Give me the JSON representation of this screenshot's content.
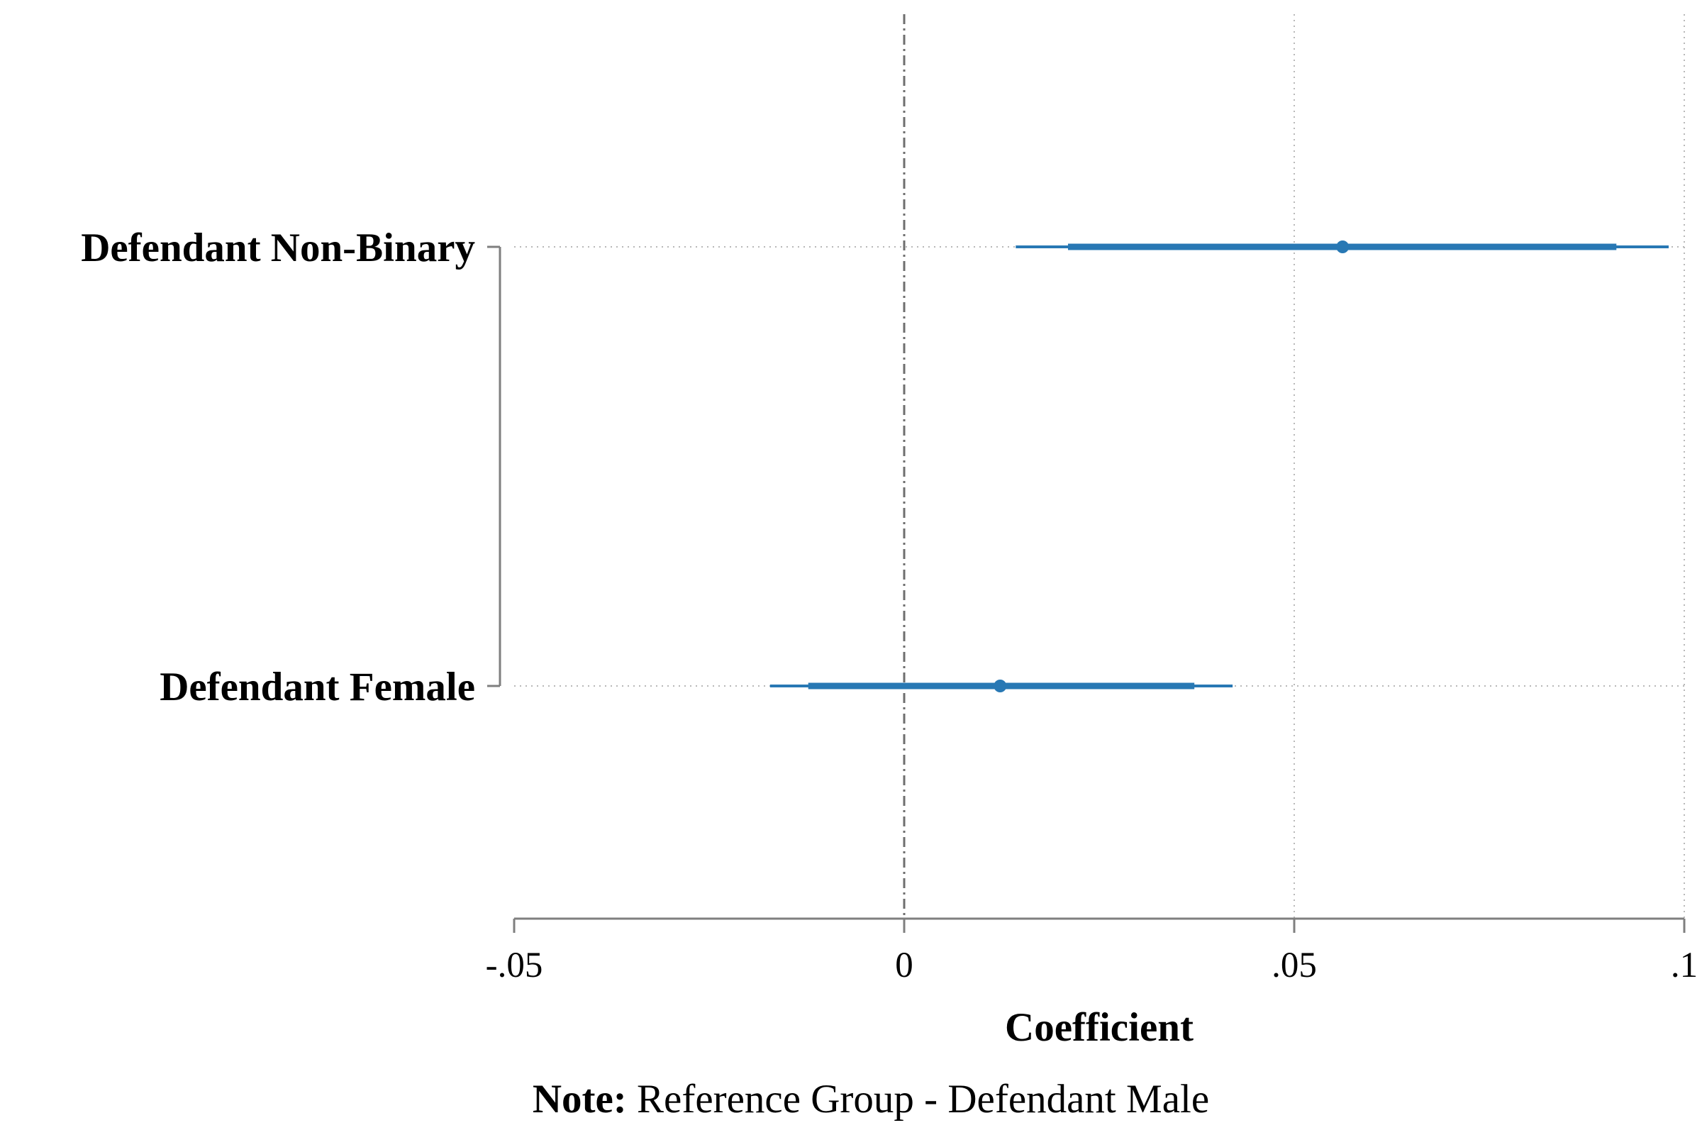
{
  "chart_data": {
    "type": "coefficient-plot",
    "title": "",
    "xlabel": "Coefficient",
    "ylabel": "",
    "xlim": [
      -0.05,
      0.1
    ],
    "xticks": [
      {
        "value": -0.05,
        "label": "-.05"
      },
      {
        "value": 0,
        "label": "0"
      },
      {
        "value": 0.05,
        "label": ".05"
      },
      {
        "value": 0.1,
        "label": ".1"
      }
    ],
    "reference_line": 0,
    "grid": true,
    "categories": [
      "Defendant Non-Binary",
      "Defendant Female"
    ],
    "estimates": [
      {
        "category": "Defendant Non-Binary",
        "coef": 0.0562,
        "ci_inner": [
          0.021,
          0.0913
        ],
        "ci_outer": [
          0.0143,
          0.098
        ]
      },
      {
        "category": "Defendant Female",
        "coef": 0.0123,
        "ci_inner": [
          -0.0123,
          0.0372
        ],
        "ci_outer": [
          -0.0172,
          0.0421
        ]
      }
    ],
    "note_bold": "Note:",
    "note_text": " Reference Group - Defendant Male",
    "colors": {
      "estimate": "#2878b4",
      "axis": "#7f7f7f",
      "grid": "#b8b8b8",
      "reference": "#6e6e6e"
    }
  }
}
